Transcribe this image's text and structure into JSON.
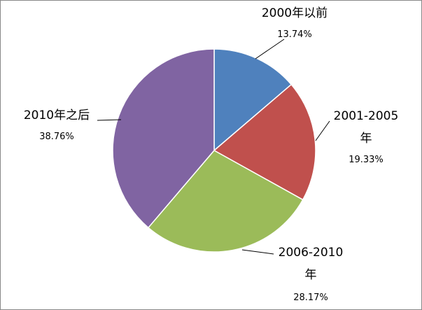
{
  "chart_data": {
    "type": "pie",
    "categories": [
      "2000年以前",
      "2001-2005年",
      "2006-2010年",
      "2010年之后"
    ],
    "values": [
      13.74,
      19.33,
      28.17,
      38.76
    ],
    "value_labels": [
      "13.74%",
      "19.33%",
      "28.17%",
      "38.76%"
    ],
    "colors": [
      "#4f81bd",
      "#c0504d",
      "#9bbb59",
      "#8064a2"
    ]
  }
}
